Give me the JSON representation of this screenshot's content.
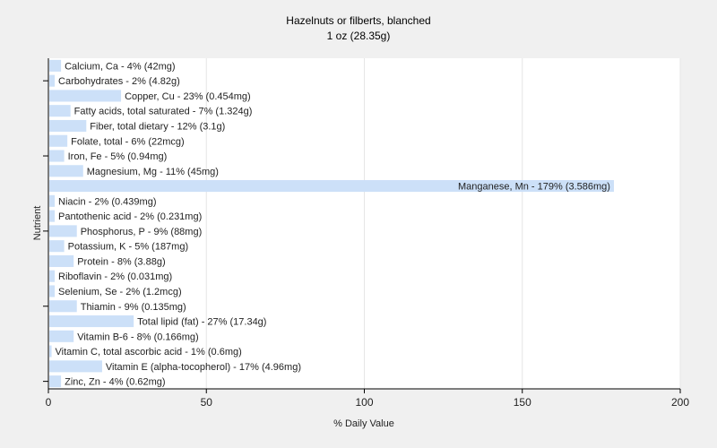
{
  "chart_data": {
    "type": "bar",
    "orientation": "horizontal",
    "title": "Hazelnuts or filberts, blanched",
    "subtitle": "1 oz (28.35g)",
    "xlabel": "% Daily Value",
    "ylabel": "Nutrient",
    "xlim": [
      0,
      200
    ],
    "xticks": [
      0,
      50,
      100,
      150,
      200
    ],
    "grid": true,
    "bar_color": "#cce0f8",
    "categories": [
      "Calcium, Ca",
      "Carbohydrates",
      "Copper, Cu",
      "Fatty acids, total saturated",
      "Fiber, total dietary",
      "Folate, total",
      "Iron, Fe",
      "Magnesium, Mg",
      "Manganese, Mn",
      "Niacin",
      "Pantothenic acid",
      "Phosphorus, P",
      "Potassium, K",
      "Protein",
      "Riboflavin",
      "Selenium, Se",
      "Thiamin",
      "Total lipid (fat)",
      "Vitamin B-6",
      "Vitamin C, total ascorbic acid",
      "Vitamin E (alpha-tocopherol)",
      "Zinc, Zn"
    ],
    "values": [
      4,
      2,
      23,
      7,
      12,
      6,
      5,
      11,
      179,
      2,
      2,
      9,
      5,
      8,
      2,
      2,
      9,
      27,
      8,
      1,
      17,
      4
    ],
    "labels": [
      "Calcium, Ca - 4% (42mg)",
      "Carbohydrates - 2% (4.82g)",
      "Copper, Cu - 23% (0.454mg)",
      "Fatty acids, total saturated - 7% (1.324g)",
      "Fiber, total dietary - 12% (3.1g)",
      "Folate, total - 6% (22mcg)",
      "Iron, Fe - 5% (0.94mg)",
      "Magnesium, Mg - 11% (45mg)",
      "Manganese, Mn - 179% (3.586mg)",
      "Niacin - 2% (0.439mg)",
      "Pantothenic acid - 2% (0.231mg)",
      "Phosphorus, P - 9% (88mg)",
      "Potassium, K - 5% (187mg)",
      "Protein - 8% (3.88g)",
      "Riboflavin - 2% (0.031mg)",
      "Selenium, Se - 2% (1.2mcg)",
      "Thiamin - 9% (0.135mg)",
      "Total lipid (fat) - 27% (17.34g)",
      "Vitamin B-6 - 8% (0.166mg)",
      "Vitamin C, total ascorbic acid - 1% (0.6mg)",
      "Vitamin E (alpha-tocopherol) - 17% (4.96mg)",
      "Zinc, Zn - 4% (0.62mg)"
    ]
  }
}
